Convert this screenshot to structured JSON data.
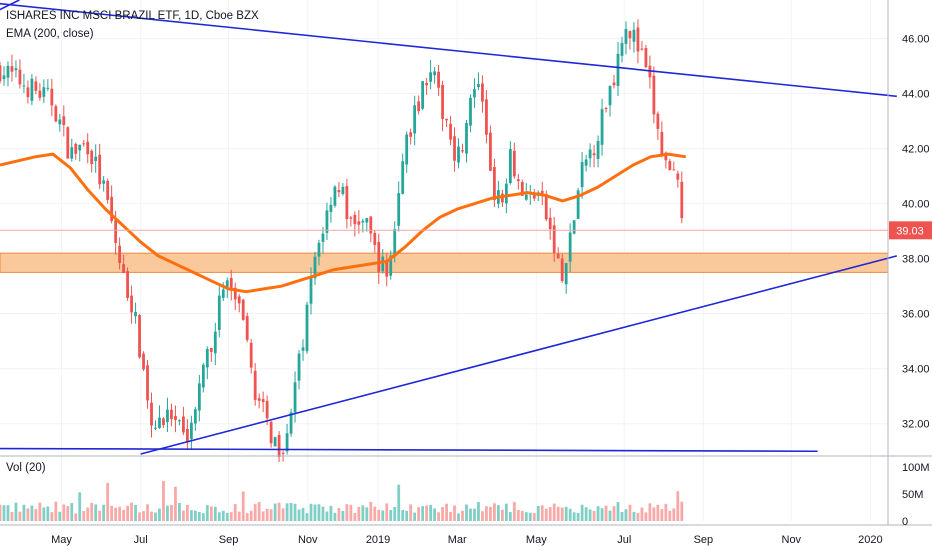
{
  "header": {
    "symbol_line": "ISHARES INC MSCI BRAZIL ETF, 1D, Cboe BZX",
    "indicator_line": "EMA (200, close)",
    "volume_label": "Vol (20)"
  },
  "chart_data": {
    "type": "candlestick",
    "x_tick_labels": [
      "May",
      "Jul",
      "Sep",
      "Nov",
      "2019",
      "Mar",
      "May",
      "Jul",
      "Sep",
      "Nov",
      "2020"
    ],
    "y_tick_labels": [
      "32.00",
      "34.00",
      "36.00",
      "38.00",
      "40.00",
      "42.00",
      "44.00",
      "46.00"
    ],
    "y_ticks": [
      32,
      34,
      36,
      38,
      40,
      42,
      44,
      46
    ],
    "ylim": [
      30.9,
      47.4
    ],
    "volume_tick_labels": [
      "100M",
      "50M",
      "0"
    ],
    "volume_ticks": [
      100,
      50,
      0
    ],
    "volume_lim": [
      0,
      115
    ],
    "last_price": 39.03,
    "last_price_label": "39.03",
    "colors": {
      "up": "#26a69a",
      "down": "#ef5350",
      "up_volume": "#7fcfc7",
      "down_volume": "#f7a9a7",
      "trendline": "#1f27d6",
      "ema": "#ff6f0f",
      "zone_fill": "#f9c89b",
      "zone_border": "#ef8a3c",
      "price_badge": "#ef5350"
    },
    "price_path": [
      [
        0,
        44.9
      ],
      [
        4,
        44.1
      ],
      [
        6,
        43.7
      ],
      [
        8,
        41.8
      ],
      [
        10,
        42.2
      ],
      [
        12,
        40.3
      ],
      [
        13,
        38.8
      ],
      [
        14,
        37.3
      ],
      [
        15,
        36.4
      ],
      [
        16,
        34.6
      ],
      [
        17,
        32.4
      ],
      [
        18,
        32.1
      ],
      [
        19,
        32.6
      ],
      [
        20,
        31.9
      ],
      [
        21,
        31.4
      ],
      [
        22,
        32.3
      ],
      [
        23,
        33.6
      ],
      [
        24,
        34.9
      ],
      [
        25,
        36.5
      ],
      [
        26,
        37.2
      ],
      [
        27,
        36.3
      ],
      [
        28,
        34.9
      ],
      [
        29,
        33.3
      ],
      [
        30,
        32.3
      ],
      [
        31,
        31.5
      ],
      [
        32,
        31.1
      ],
      [
        33,
        32.4
      ],
      [
        34,
        34.1
      ],
      [
        35,
        36.2
      ],
      [
        36,
        38.4
      ],
      [
        37,
        39.4
      ],
      [
        38,
        40.8
      ],
      [
        39,
        40.3
      ],
      [
        40,
        39.0
      ],
      [
        41,
        39.5
      ],
      [
        42,
        38.9
      ],
      [
        43,
        38.0
      ],
      [
        44,
        37.4
      ],
      [
        45,
        39.4
      ],
      [
        46,
        41.9
      ],
      [
        47,
        43.1
      ],
      [
        48,
        44.2
      ],
      [
        49,
        45.1
      ],
      [
        50,
        43.6
      ],
      [
        51,
        42.9
      ],
      [
        52,
        41.6
      ],
      [
        53,
        42.7
      ],
      [
        54,
        44.3
      ],
      [
        55,
        43.4
      ],
      [
        56,
        40.8
      ],
      [
        57,
        39.8
      ],
      [
        58,
        42.1
      ],
      [
        59,
        40.7
      ],
      [
        60,
        40.1
      ],
      [
        61,
        40.6
      ],
      [
        62,
        39.7
      ],
      [
        63,
        38.4
      ],
      [
        64,
        37.1
      ],
      [
        65,
        38.9
      ],
      [
        66,
        40.9
      ],
      [
        67,
        41.8
      ],
      [
        68,
        42.5
      ],
      [
        69,
        43.8
      ],
      [
        70,
        44.9
      ],
      [
        71,
        46.7
      ],
      [
        72,
        46.1
      ],
      [
        73,
        45.3
      ],
      [
        74,
        44.1
      ],
      [
        75,
        42.2
      ],
      [
        76,
        41.1
      ],
      [
        77,
        40.6
      ],
      [
        78,
        39.1
      ]
    ],
    "ema200": [
      [
        0,
        41.4
      ],
      [
        4,
        41.7
      ],
      [
        6,
        41.8
      ],
      [
        8,
        41.3
      ],
      [
        10,
        40.5
      ],
      [
        12,
        39.8
      ],
      [
        14,
        39.2
      ],
      [
        16,
        38.6
      ],
      [
        18,
        38.1
      ],
      [
        20,
        37.8
      ],
      [
        22,
        37.5
      ],
      [
        24,
        37.2
      ],
      [
        26,
        36.9
      ],
      [
        28,
        36.8
      ],
      [
        30,
        36.9
      ],
      [
        32,
        37.0
      ],
      [
        34,
        37.2
      ],
      [
        36,
        37.4
      ],
      [
        38,
        37.6
      ],
      [
        40,
        37.7
      ],
      [
        42,
        37.8
      ],
      [
        44,
        37.9
      ],
      [
        46,
        38.4
      ],
      [
        48,
        39.0
      ],
      [
        50,
        39.5
      ],
      [
        52,
        39.8
      ],
      [
        54,
        40.0
      ],
      [
        56,
        40.2
      ],
      [
        58,
        40.3
      ],
      [
        60,
        40.4
      ],
      [
        62,
        40.3
      ],
      [
        64,
        40.1
      ],
      [
        66,
        40.3
      ],
      [
        68,
        40.6
      ],
      [
        70,
        41.0
      ],
      [
        72,
        41.4
      ],
      [
        74,
        41.7
      ],
      [
        76,
        41.8
      ],
      [
        78,
        41.7
      ]
    ],
    "trendlines": [
      {
        "name": "upper-resistance",
        "from": [
          -1,
          47.3
        ],
        "to": [
          102,
          43.9
        ]
      },
      {
        "name": "rising-support",
        "from": [
          16,
          30.9
        ],
        "to": [
          102,
          38.1
        ]
      },
      {
        "name": "horizontal-support",
        "from": [
          -1,
          31.1
        ],
        "to": [
          93,
          31.0
        ]
      }
    ],
    "zone": {
      "low": 37.5,
      "high": 38.2
    },
    "x_ticks": [
      7,
      16,
      26,
      35,
      43,
      52,
      61,
      71,
      80,
      90,
      99
    ],
    "x_lim": [
      0,
      101
    ],
    "volume_bars": 172
  }
}
